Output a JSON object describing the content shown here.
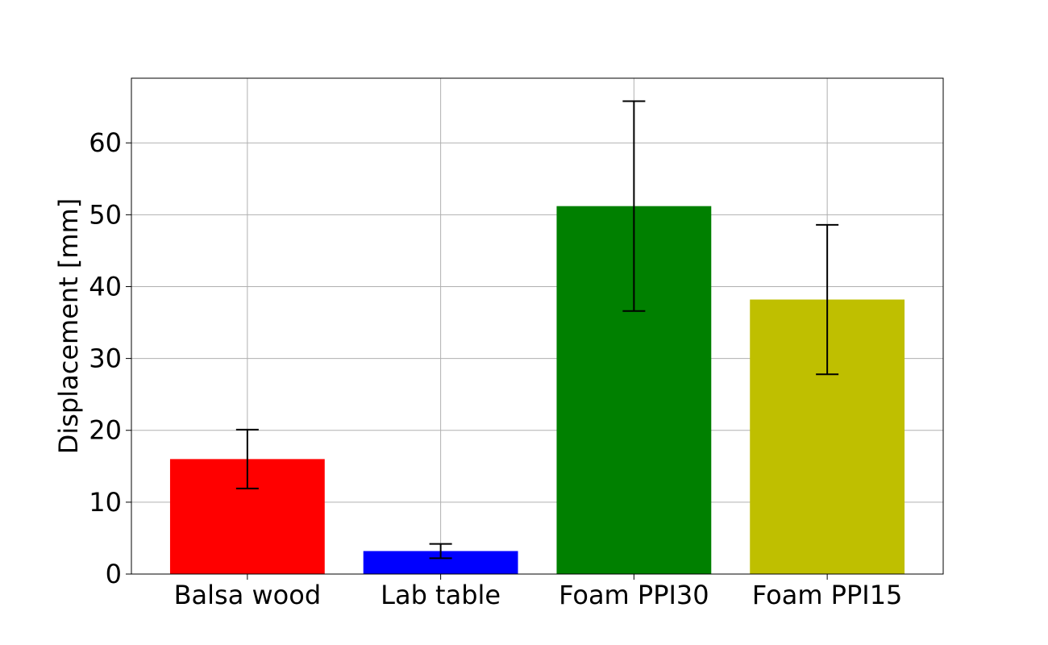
{
  "chart_data": {
    "type": "bar",
    "categories": [
      "Balsa wood",
      "Lab table",
      "Foam PPI30",
      "Foam PPI15"
    ],
    "values": [
      16.0,
      3.2,
      51.2,
      38.2
    ],
    "errors": [
      4.1,
      1.0,
      14.6,
      10.4
    ],
    "colors": [
      "#ff0000",
      "#0000ff",
      "#008000",
      "#bfbf00"
    ],
    "title": "",
    "xlabel": "",
    "ylabel": "Displacement [mm]",
    "ylim": [
      0,
      69
    ],
    "yticks": [
      0,
      10,
      20,
      30,
      40,
      50,
      60
    ],
    "grid": true
  }
}
